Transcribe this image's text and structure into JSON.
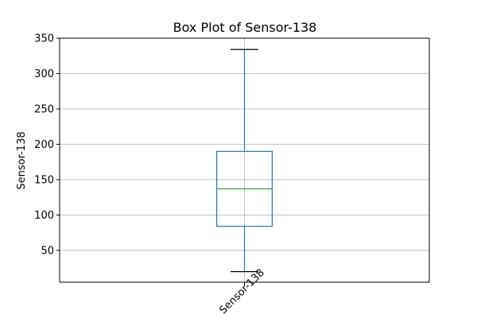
{
  "chart_data": {
    "type": "box",
    "title": "Box Plot of Sensor-138",
    "y_label": "Sensor-138",
    "categories": [
      "Sensor-138"
    ],
    "boxes": [
      {
        "whislo": 20,
        "q1": 84,
        "med": 137,
        "q3": 190,
        "whishi": 334
      }
    ],
    "box_color": "#1f77b4",
    "median_color": "#2ca02c",
    "cap_color": "#000000",
    "ylim": [
      5,
      350
    ],
    "yticks": [
      50,
      100,
      150,
      200,
      250,
      300,
      350
    ],
    "grid": true
  }
}
